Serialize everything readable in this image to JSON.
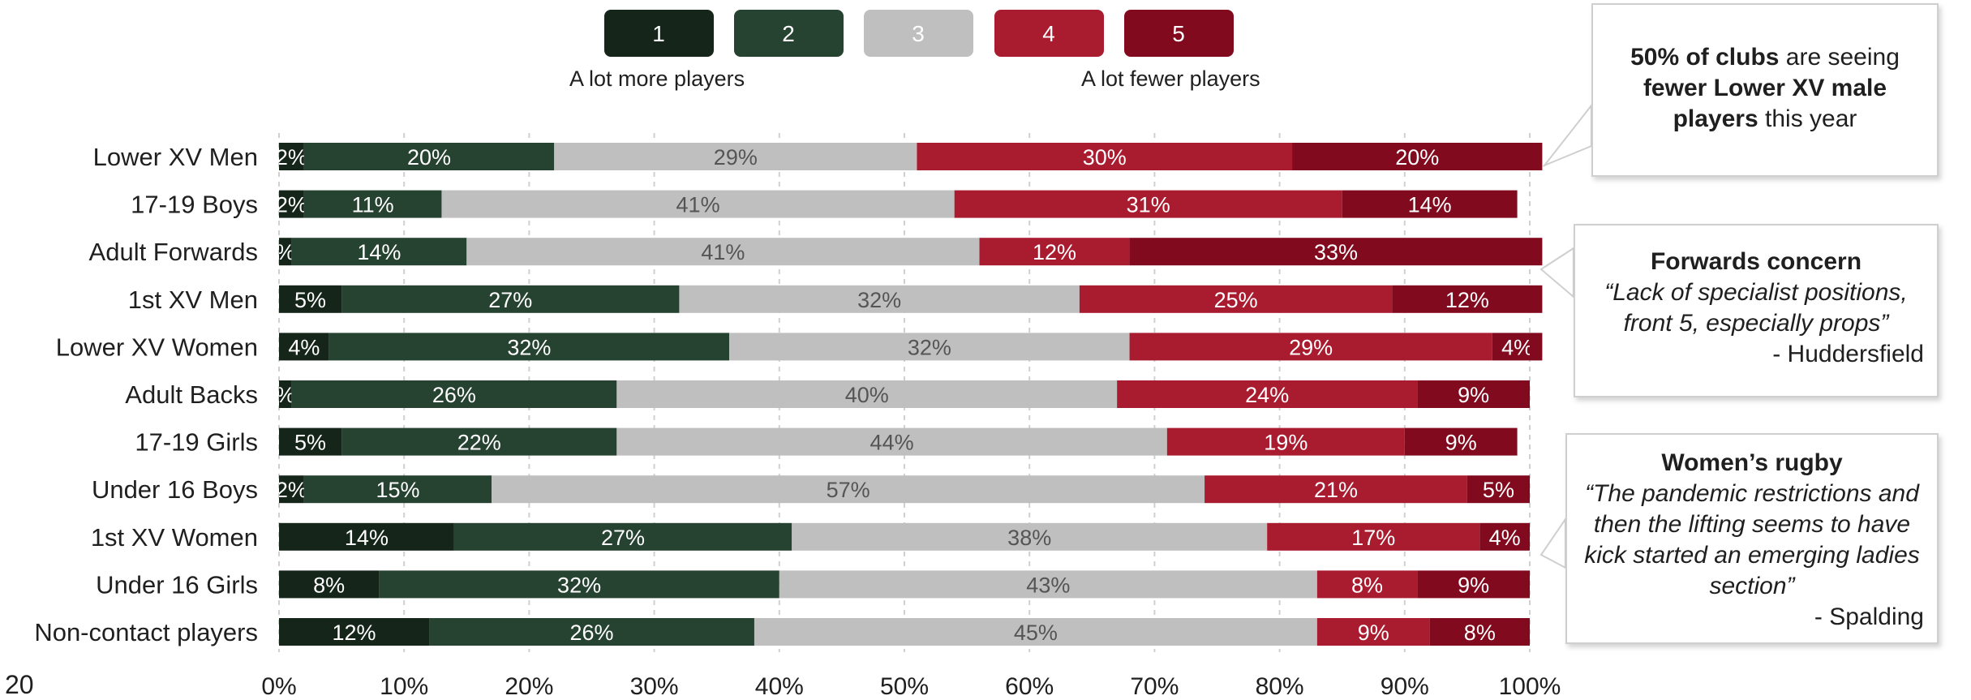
{
  "chart_data": {
    "type": "bar",
    "orientation": "horizontal",
    "stacked": true,
    "percent_scale": true,
    "categories": [
      "Lower XV Men",
      "17-19 Boys",
      "Adult Forwards",
      "1st XV Men",
      "Lower XV Women",
      "Adult Backs",
      "17-19 Girls",
      "Under 16 Boys",
      "1st XV Women",
      "Under 16 Girls",
      "Non-contact players"
    ],
    "series": [
      {
        "name": "1",
        "color": "#15251a",
        "values": [
          2,
          2,
          1,
          5,
          4,
          1,
          5,
          2,
          14,
          8,
          12
        ],
        "labels": [
          "2%",
          "2%",
          "%",
          "5%",
          "4%",
          "%",
          "5%",
          "2%",
          "14%",
          "8%",
          "12%"
        ],
        "label_color": "#ffffff"
      },
      {
        "name": "2",
        "color": "#264230",
        "values": [
          20,
          11,
          14,
          27,
          32,
          26,
          22,
          15,
          27,
          32,
          26
        ],
        "labels": [
          "20%",
          "11%",
          "14%",
          "27%",
          "32%",
          "26%",
          "22%",
          "15%",
          "27%",
          "32%",
          "26%"
        ],
        "label_color": "#ffffff"
      },
      {
        "name": "3",
        "color": "#bfbfbf",
        "values": [
          29,
          41,
          41,
          32,
          32,
          40,
          44,
          57,
          38,
          43,
          45
        ],
        "labels": [
          "29%",
          "41%",
          "41%",
          "32%",
          "32%",
          "40%",
          "44%",
          "57%",
          "38%",
          "43%",
          "45%"
        ],
        "label_color": "#555555"
      },
      {
        "name": "4",
        "color": "#a91c30",
        "values": [
          30,
          31,
          12,
          25,
          29,
          24,
          19,
          21,
          17,
          8,
          9
        ],
        "labels": [
          "30%",
          "31%",
          "12%",
          "25%",
          "29%",
          "24%",
          "19%",
          "21%",
          "17%",
          "8%",
          "9%"
        ],
        "label_color": "#ffffff"
      },
      {
        "name": "5",
        "color": "#820a1e",
        "values": [
          20,
          14,
          33,
          12,
          4,
          9,
          9,
          5,
          4,
          9,
          8
        ],
        "labels": [
          "20%",
          "14%",
          "33%",
          "12%",
          "4%",
          "9%",
          "9%",
          "5%",
          "4%",
          "9%",
          "8%"
        ],
        "label_color": "#ffffff"
      }
    ],
    "x_ticks": [
      "0%",
      "10%",
      "20%",
      "30%",
      "40%",
      "50%",
      "60%",
      "70%",
      "80%",
      "90%",
      "100%"
    ],
    "xlim": [
      0,
      100
    ],
    "grid": "vertical dashed",
    "legend_position": "top"
  },
  "legend": {
    "left_caption": "A lot more players",
    "right_caption": "A lot fewer players"
  },
  "callouts": {
    "c1": {
      "bold1": "50% of clubs",
      "text1": " are seeing ",
      "bold2": "fewer Lower XV male players",
      "text2": " this year"
    },
    "c2": {
      "title": "Forwards concern",
      "quote": "“Lack of specialist positions, front 5, especially props”",
      "attribution": "- Huddersfield"
    },
    "c3": {
      "title": "Women’s rugby",
      "quote": "“The pandemic restrictions and then the lifting seems to have kick started an emerging ladies section”",
      "attribution": "- Spalding"
    }
  },
  "page_number": "20"
}
